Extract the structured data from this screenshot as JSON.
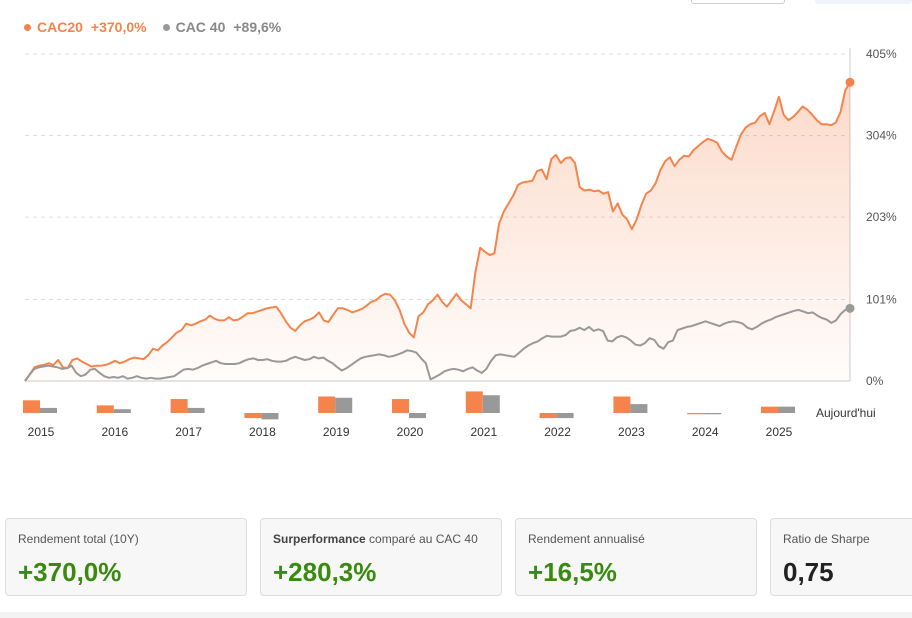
{
  "legend": [
    {
      "name": "CAC20",
      "value": "+370,0%",
      "color": "#f5844c"
    },
    {
      "name": "CAC 40",
      "value": "+89,6%",
      "color": "#999999"
    }
  ],
  "chart_data": {
    "type": "line",
    "title": "",
    "xlabel": "",
    "ylabel": "",
    "ylim": [
      0,
      405
    ],
    "y_ticks": [
      "405%",
      "304%",
      "203%",
      "101%",
      "0%"
    ],
    "y_tick_values": [
      405,
      304,
      203,
      101,
      0
    ],
    "x_ticks": [
      "2015",
      "2016",
      "2017",
      "2018",
      "2019",
      "2020",
      "2021",
      "2022",
      "2023",
      "2024",
      "2025"
    ],
    "grid": true,
    "series": [
      {
        "name": "CAC20",
        "color": "#f5844c",
        "end_label": "+370,0%",
        "values": [
          0,
          8,
          17,
          19,
          20,
          22,
          20,
          26,
          17,
          16,
          26,
          28,
          24,
          21,
          18,
          19,
          19,
          20,
          22,
          25,
          22,
          24,
          27,
          29,
          28,
          27,
          32,
          40,
          38,
          44,
          48,
          54,
          60,
          63,
          71,
          69,
          71,
          74,
          76,
          81,
          77,
          75,
          75,
          79,
          75,
          76,
          80,
          84,
          84,
          86,
          88,
          90,
          91,
          92,
          84,
          74,
          66,
          62,
          69,
          74,
          76,
          79,
          85,
          75,
          73,
          82,
          90,
          90,
          88,
          85,
          87,
          89,
          93,
          98,
          100,
          105,
          108,
          107,
          100,
          88,
          71,
          60,
          54,
          80,
          85,
          95,
          100,
          107,
          98,
          92,
          100,
          108,
          100,
          95,
          90,
          135,
          165,
          160,
          156,
          158,
          195,
          210,
          220,
          230,
          243,
          246,
          247,
          248,
          260,
          262,
          250,
          275,
          280,
          270,
          276,
          277,
          270,
          240,
          236,
          237,
          235,
          236,
          232,
          234,
          210,
          220,
          206,
          200,
          188,
          200,
          218,
          232,
          236,
          245,
          261,
          272,
          277,
          266,
          274,
          279,
          278,
          286,
          291,
          296,
          300,
          298,
          295,
          284,
          278,
          274,
          290,
          305,
          314,
          318,
          320,
          328,
          332,
          318,
          334,
          352,
          330,
          323,
          327,
          333,
          340,
          336,
          330,
          323,
          318,
          318,
          317,
          320,
          333,
          360,
          370
        ]
      },
      {
        "name": "CAC 40",
        "color": "#999999",
        "end_label": "+89,6%",
        "values": [
          0,
          8,
          15,
          17,
          18,
          19,
          18,
          17,
          15,
          16,
          19,
          10,
          6,
          8,
          14,
          15,
          10,
          6,
          4,
          5,
          4,
          6,
          3,
          4,
          6,
          4,
          3,
          4,
          3,
          3,
          4,
          5,
          6,
          10,
          14,
          15,
          14,
          16,
          19,
          21,
          23,
          25,
          22,
          21,
          21,
          21,
          22,
          25,
          27,
          28,
          26,
          26,
          27,
          25,
          24,
          24,
          25,
          28,
          30,
          28,
          26,
          27,
          30,
          28,
          29,
          25,
          22,
          17,
          13,
          16,
          20,
          24,
          28,
          30,
          31,
          32,
          33,
          32,
          30,
          31,
          33,
          35,
          38,
          37,
          35,
          28,
          22,
          2,
          5,
          8,
          12,
          14,
          15,
          14,
          12,
          15,
          17,
          13,
          10,
          15,
          25,
          32,
          33,
          32,
          31,
          30,
          35,
          40,
          44,
          47,
          49,
          53,
          56,
          55,
          55,
          55,
          57,
          62,
          63,
          66,
          63,
          67,
          62,
          64,
          62,
          50,
          49,
          54,
          56,
          54,
          50,
          45,
          44,
          47,
          53,
          51,
          43,
          40,
          48,
          50,
          63,
          65,
          67,
          68,
          70,
          72,
          74,
          72,
          70,
          68,
          71,
          73,
          74,
          73,
          71,
          66,
          64,
          67,
          71,
          74,
          76,
          79,
          81,
          83,
          85,
          87,
          88,
          86,
          84,
          85,
          81,
          78,
          76,
          72,
          75,
          83,
          88,
          90
        ]
      }
    ],
    "annual_returns": {
      "label_today": "Aujourd'hui",
      "years": [
        "2015",
        "2016",
        "2017",
        "2018",
        "2019",
        "2020",
        "2021",
        "2022",
        "2023",
        "2024",
        "2025",
        "Aujourd'hui"
      ],
      "cac20": [
        10,
        6,
        11,
        -4,
        13,
        11,
        17,
        -4,
        13,
        -1,
        5,
        null
      ],
      "cac40": [
        4,
        3,
        4,
        -5,
        12,
        -4,
        14,
        -4,
        7,
        -1,
        5,
        null
      ]
    }
  },
  "cards": [
    {
      "label_bold": "",
      "label": "Rendement total (10Y)",
      "value": "+370,0%",
      "tone": "pos"
    },
    {
      "label_bold": "Surperformance",
      "label": " comparé au CAC 40",
      "value": "+280,3%",
      "tone": "pos"
    },
    {
      "label_bold": "",
      "label": "Rendement annualisé",
      "value": "+16,5%",
      "tone": "pos"
    },
    {
      "label_bold": "",
      "label": "Ratio de Sharpe",
      "value": "0,75",
      "tone": "neutral"
    }
  ]
}
